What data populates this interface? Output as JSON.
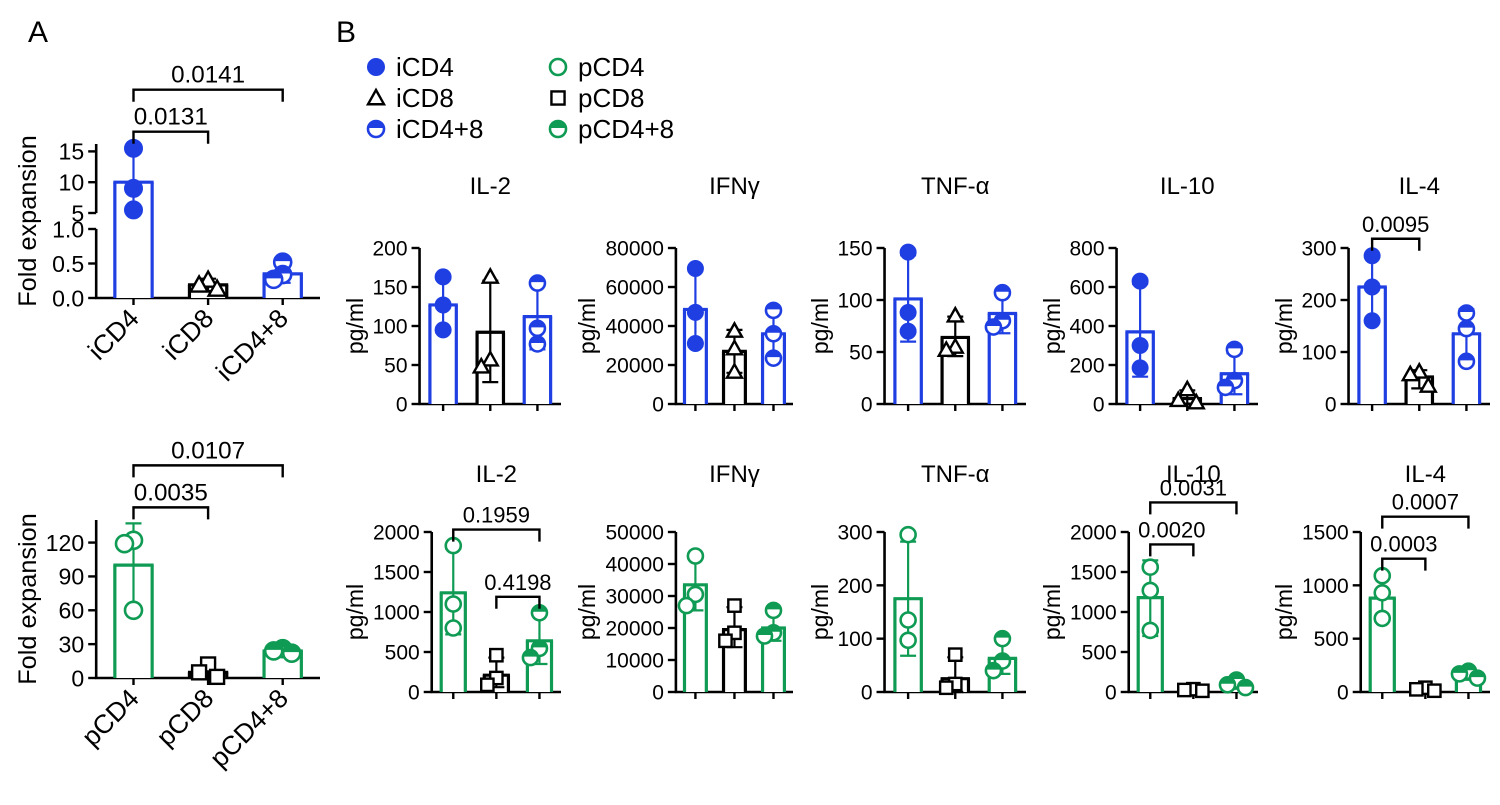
{
  "panel_a_label": "A",
  "panel_b_label": "B",
  "colors": {
    "blue": "#1f3fe3",
    "green": "#0f9b53",
    "black": "#000000"
  },
  "legend": {
    "columns": [
      [
        {
          "label": "iCD4",
          "marker": "circle-filled",
          "color": "blue"
        },
        {
          "label": "iCD8",
          "marker": "triangle-open",
          "color": "black"
        },
        {
          "label": "iCD4+8",
          "marker": "circle-half",
          "color": "blue"
        }
      ],
      [
        {
          "label": "pCD4",
          "marker": "circle-open",
          "color": "green"
        },
        {
          "label": "pCD8",
          "marker": "square-open",
          "color": "black"
        },
        {
          "label": "pCD4+8",
          "marker": "circle-half",
          "color": "green"
        }
      ]
    ]
  },
  "chart_data": [
    {
      "id": "a_top",
      "type": "bar",
      "panel": "A",
      "title": "",
      "ylabel": "Fold expansion",
      "categories": [
        "iCD4",
        "iCD8",
        "iCD4+8"
      ],
      "show_xlabels": true,
      "segments": [
        {
          "ylim": [
            0,
            1
          ],
          "ticks": [
            0,
            0.5,
            1
          ],
          "labels": [
            "0.0",
            "0.5",
            "1.0"
          ]
        },
        {
          "ylim": [
            5,
            16.2
          ],
          "ticks": [
            5,
            10,
            15
          ]
        }
      ],
      "bars": [
        {
          "category": "iCD4",
          "color": "blue",
          "marker": "circle-filled",
          "value": 10,
          "err": [
            5.2,
            15.6
          ],
          "points": [
            15.5,
            9.0,
            5.5
          ]
        },
        {
          "category": "iCD8",
          "color": "black",
          "marker": "triangle-open",
          "value": 0.19,
          "err": [
            0.1,
            0.28
          ],
          "points": [
            0.26,
            0.19,
            0.13
          ]
        },
        {
          "category": "iCD4+8",
          "color": "blue",
          "marker": "circle-half",
          "value": 0.35,
          "err": [
            0.22,
            0.5
          ],
          "points": [
            0.52,
            0.34,
            0.27
          ]
        }
      ],
      "pvalues": [
        {
          "text": "0.0131",
          "from": 0,
          "to": 1,
          "level": 0
        },
        {
          "text": "0.0141",
          "from": 0,
          "to": 2,
          "level": 1
        }
      ]
    },
    {
      "id": "a_bottom",
      "type": "bar",
      "panel": "A",
      "title": "",
      "ylabel": "Fold expansion",
      "categories": [
        "pCD4",
        "pCD8",
        "pCD4+8"
      ],
      "show_xlabels": true,
      "segments": [
        {
          "ylim": [
            0,
            140
          ],
          "ticks": [
            0,
            30,
            60,
            90,
            120
          ]
        }
      ],
      "bars": [
        {
          "category": "pCD4",
          "color": "green",
          "marker": "circle-open",
          "value": 100,
          "err": [
            62,
            137
          ],
          "points": [
            122,
            119,
            60
          ]
        },
        {
          "category": "pCD8",
          "color": "black",
          "marker": "square-open",
          "value": 5,
          "err": [
            0,
            13
          ],
          "points": [
            12,
            5,
            1
          ]
        },
        {
          "category": "pCD4+8",
          "color": "green",
          "marker": "circle-half",
          "value": 24,
          "err": [
            20,
            27
          ],
          "points": [
            26,
            24,
            22
          ]
        }
      ],
      "pvalues": [
        {
          "text": "0.0035",
          "from": 0,
          "to": 1,
          "level": 0
        },
        {
          "text": "0.0107",
          "from": 0,
          "to": 2,
          "level": 1
        }
      ]
    },
    {
      "id": "b_top_il2",
      "type": "bar",
      "panel": "B",
      "title": "IL-2",
      "ylabel": "pg/ml",
      "categories": [
        "iCD4",
        "iCD8",
        "iCD4+8"
      ],
      "show_xlabels": false,
      "segments": [
        {
          "ylim": [
            0,
            200
          ],
          "ticks": [
            0,
            50,
            100,
            150,
            200
          ]
        }
      ],
      "bars": [
        {
          "category": "iCD4",
          "color": "blue",
          "marker": "circle-filled",
          "value": 127,
          "err": [
            92,
            160
          ],
          "points": [
            163,
            127,
            95
          ]
        },
        {
          "category": "iCD8",
          "color": "black",
          "marker": "triangle-open",
          "value": 92,
          "err": [
            28,
            158
          ],
          "points": [
            163,
            57,
            48
          ]
        },
        {
          "category": "iCD4+8",
          "color": "blue",
          "marker": "circle-half",
          "value": 112,
          "err": [
            70,
            153
          ],
          "points": [
            155,
            97,
            77
          ]
        }
      ],
      "pvalues": []
    },
    {
      "id": "b_top_ifng",
      "type": "bar",
      "panel": "B",
      "title": "IFNγ",
      "ylabel": "pg/ml",
      "categories": [
        "iCD4",
        "iCD8",
        "iCD4+8"
      ],
      "show_xlabels": false,
      "segments": [
        {
          "ylim": [
            0,
            80000
          ],
          "ticks": [
            0,
            20000,
            40000,
            60000,
            80000
          ]
        }
      ],
      "bars": [
        {
          "category": "iCD4",
          "color": "blue",
          "marker": "circle-filled",
          "value": 48500,
          "err": [
            30000,
            68500
          ],
          "points": [
            69500,
            47000,
            31000
          ]
        },
        {
          "category": "iCD8",
          "color": "black",
          "marker": "triangle-open",
          "value": 27000,
          "err": [
            16000,
            38000
          ],
          "points": [
            37500,
            28500,
            16500
          ]
        },
        {
          "category": "iCD4+8",
          "color": "blue",
          "marker": "circle-half",
          "value": 36000,
          "err": [
            23500,
            48500
          ],
          "points": [
            48000,
            36000,
            23500
          ]
        }
      ],
      "pvalues": []
    },
    {
      "id": "b_top_tnfa",
      "type": "bar",
      "panel": "B",
      "title": "TNF-α",
      "ylabel": "pg/ml",
      "categories": [
        "iCD4",
        "iCD8",
        "iCD4+8"
      ],
      "show_xlabels": false,
      "segments": [
        {
          "ylim": [
            0,
            150
          ],
          "ticks": [
            0,
            50,
            100,
            150
          ]
        }
      ],
      "bars": [
        {
          "category": "iCD4",
          "color": "blue",
          "marker": "circle-filled",
          "value": 101,
          "err": [
            60,
            143
          ],
          "points": [
            146,
            88,
            70
          ]
        },
        {
          "category": "iCD8",
          "color": "black",
          "marker": "triangle-open",
          "value": 64,
          "err": [
            46,
            84
          ],
          "points": [
            85,
            55,
            52
          ]
        },
        {
          "category": "iCD4+8",
          "color": "blue",
          "marker": "circle-half",
          "value": 87,
          "err": [
            68,
            105
          ],
          "points": [
            107,
            80,
            74
          ]
        }
      ],
      "pvalues": []
    },
    {
      "id": "b_top_il10",
      "type": "bar",
      "panel": "B",
      "title": "IL-10",
      "ylabel": "pg/ml",
      "categories": [
        "iCD4",
        "iCD8",
        "iCD4+8"
      ],
      "show_xlabels": false,
      "segments": [
        {
          "ylim": [
            0,
            800
          ],
          "ticks": [
            0,
            200,
            400,
            600,
            800
          ]
        }
      ],
      "bars": [
        {
          "category": "iCD4",
          "color": "blue",
          "marker": "circle-filled",
          "value": 370,
          "err": [
            140,
            615
          ],
          "points": [
            630,
            300,
            185
          ]
        },
        {
          "category": "iCD8",
          "color": "black",
          "marker": "triangle-open",
          "value": 28,
          "err": [
            2,
            70
          ],
          "points": [
            75,
            20,
            8
          ]
        },
        {
          "category": "iCD4+8",
          "color": "blue",
          "marker": "circle-half",
          "value": 155,
          "err": [
            50,
            260
          ],
          "points": [
            280,
            120,
            85
          ]
        }
      ],
      "pvalues": []
    },
    {
      "id": "b_top_il4",
      "type": "bar",
      "panel": "B",
      "title": "IL-4",
      "ylabel": "pg/ml",
      "categories": [
        "iCD4",
        "iCD8",
        "iCD4+8"
      ],
      "show_xlabels": false,
      "segments": [
        {
          "ylim": [
            0,
            300
          ],
          "ticks": [
            0,
            100,
            200,
            300
          ]
        }
      ],
      "bars": [
        {
          "category": "iCD4",
          "color": "blue",
          "marker": "circle-filled",
          "value": 225,
          "err": [
            158,
            287
          ],
          "points": [
            285,
            225,
            160
          ]
        },
        {
          "category": "iCD8",
          "color": "black",
          "marker": "triangle-open",
          "value": 52,
          "err": [
            30,
            65
          ],
          "points": [
            62,
            57,
            35
          ]
        },
        {
          "category": "iCD4+8",
          "color": "blue",
          "marker": "circle-half",
          "value": 135,
          "err": [
            78,
            182
          ],
          "points": [
            175,
            145,
            82
          ]
        }
      ],
      "pvalues": [
        {
          "text": "0.0095",
          "from": 0,
          "to": 1,
          "level": 0
        }
      ]
    },
    {
      "id": "b_bot_il2",
      "type": "bar",
      "panel": "B",
      "title": "IL-2",
      "ylabel": "pg/ml",
      "categories": [
        "pCD4",
        "pCD8",
        "pCD4+8"
      ],
      "show_xlabels": false,
      "segments": [
        {
          "ylim": [
            0,
            2000
          ],
          "ticks": [
            0,
            500,
            1000,
            1500,
            2000
          ]
        }
      ],
      "bars": [
        {
          "category": "pCD4",
          "color": "green",
          "marker": "circle-open",
          "value": 1240,
          "err": [
            720,
            1790
          ],
          "points": [
            1830,
            1100,
            800
          ]
        },
        {
          "category": "pCD8",
          "color": "black",
          "marker": "square-open",
          "value": 210,
          "err": [
            60,
            430
          ],
          "points": [
            460,
            175,
            90
          ]
        },
        {
          "category": "pCD4+8",
          "color": "green",
          "marker": "circle-half",
          "value": 640,
          "err": [
            350,
            985
          ],
          "points": [
            990,
            545,
            430
          ]
        }
      ],
      "pvalues": [
        {
          "text": "0.1959",
          "from": 0,
          "to": 2,
          "level": 0
        },
        {
          "text": "0.4198",
          "from": 1,
          "to": 2,
          "level": 0
        }
      ]
    },
    {
      "id": "b_bot_ifng",
      "type": "bar",
      "panel": "B",
      "title": "IFNγ",
      "ylabel": "pg/ml",
      "categories": [
        "pCD4",
        "pCD8",
        "pCD4+8"
      ],
      "show_xlabels": false,
      "segments": [
        {
          "ylim": [
            0,
            50000
          ],
          "ticks": [
            0,
            10000,
            20000,
            30000,
            40000,
            50000
          ]
        }
      ],
      "bars": [
        {
          "category": "pCD4",
          "color": "green",
          "marker": "circle-open",
          "value": 33500,
          "err": [
            25500,
            42000
          ],
          "points": [
            42500,
            30500,
            27000
          ]
        },
        {
          "category": "pCD8",
          "color": "black",
          "marker": "square-open",
          "value": 19500,
          "err": [
            14000,
            26500
          ],
          "points": [
            27000,
            18500,
            16000
          ]
        },
        {
          "category": "pCD4+8",
          "color": "green",
          "marker": "circle-half",
          "value": 20000,
          "err": [
            16000,
            25500
          ],
          "points": [
            25500,
            18500,
            17500
          ]
        }
      ],
      "pvalues": []
    },
    {
      "id": "b_bot_tnfa",
      "type": "bar",
      "panel": "B",
      "title": "TNF-α",
      "ylabel": "pg/ml",
      "categories": [
        "pCD4",
        "pCD8",
        "pCD4+8"
      ],
      "show_xlabels": false,
      "segments": [
        {
          "ylim": [
            0,
            300
          ],
          "ticks": [
            0,
            100,
            200,
            300
          ]
        }
      ],
      "bars": [
        {
          "category": "pCD4",
          "color": "green",
          "marker": "circle-open",
          "value": 175,
          "err": [
            68,
            282
          ],
          "points": [
            295,
            135,
            97
          ]
        },
        {
          "category": "pCD8",
          "color": "black",
          "marker": "square-open",
          "value": 25,
          "err": [
            0,
            65
          ],
          "points": [
            70,
            15,
            8
          ]
        },
        {
          "category": "pCD4+8",
          "color": "green",
          "marker": "circle-half",
          "value": 63,
          "err": [
            34,
            98
          ],
          "points": [
            100,
            58,
            40
          ]
        }
      ],
      "pvalues": []
    },
    {
      "id": "b_bot_il10",
      "type": "bar",
      "panel": "B",
      "title": "IL-10",
      "ylabel": "pg/ml",
      "categories": [
        "pCD4",
        "pCD8",
        "pCD4+8"
      ],
      "show_xlabels": false,
      "segments": [
        {
          "ylim": [
            0,
            2000
          ],
          "ticks": [
            0,
            500,
            1000,
            1500,
            2000
          ]
        }
      ],
      "bars": [
        {
          "category": "pCD4",
          "color": "green",
          "marker": "circle-open",
          "value": 1180,
          "err": [
            700,
            1645
          ],
          "points": [
            1560,
            1270,
            770
          ]
        },
        {
          "category": "pCD8",
          "color": "black",
          "marker": "square-open",
          "value": 25,
          "err": [
            5,
            45
          ],
          "points": [
            35,
            25,
            15
          ]
        },
        {
          "category": "pCD4+8",
          "color": "green",
          "marker": "circle-half",
          "value": 85,
          "err": [
            40,
            150
          ],
          "points": [
            150,
            90,
            55
          ]
        }
      ],
      "pvalues": [
        {
          "text": "0.0020",
          "from": 0,
          "to": 1,
          "level": 0
        },
        {
          "text": "0.0031",
          "from": 0,
          "to": 2,
          "level": 1
        }
      ]
    },
    {
      "id": "b_bot_il4",
      "type": "bar",
      "panel": "B",
      "title": "IL-4",
      "ylabel": "pg/ml",
      "categories": [
        "pCD4",
        "pCD8",
        "pCD4+8"
      ],
      "show_xlabels": false,
      "segments": [
        {
          "ylim": [
            0,
            1500
          ],
          "ticks": [
            0,
            500,
            1000,
            1500
          ]
        }
      ],
      "bars": [
        {
          "category": "pCD4",
          "color": "green",
          "marker": "circle-open",
          "value": 880,
          "err": [
            670,
            1100
          ],
          "points": [
            1090,
            930,
            690
          ]
        },
        {
          "category": "pCD8",
          "color": "black",
          "marker": "square-open",
          "value": 25,
          "err": [
            5,
            45
          ],
          "points": [
            40,
            25,
            12
          ]
        },
        {
          "category": "pCD4+8",
          "color": "green",
          "marker": "circle-half",
          "value": 160,
          "err": [
            115,
            200
          ],
          "points": [
            195,
            170,
            130
          ]
        }
      ],
      "pvalues": [
        {
          "text": "0.0003",
          "from": 0,
          "to": 1,
          "level": 0
        },
        {
          "text": "0.0007",
          "from": 0,
          "to": 2,
          "level": 1
        }
      ]
    }
  ]
}
